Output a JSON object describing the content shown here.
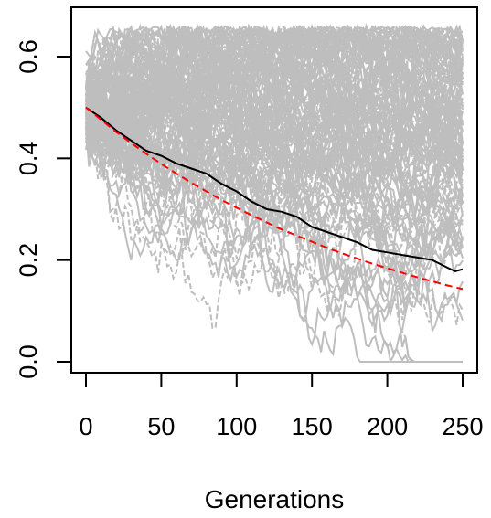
{
  "chart_data": {
    "type": "line",
    "xlabel": "Generations",
    "ylabel": "",
    "xlim": [
      0,
      250
    ],
    "ylim": [
      0,
      0.6
    ],
    "x_ticks": [
      0,
      50,
      100,
      150,
      200,
      250
    ],
    "x_tick_labels": [
      "0",
      "50",
      "100",
      "150",
      "200",
      "250"
    ],
    "y_ticks": [
      0.0,
      0.2,
      0.4,
      0.6
    ],
    "y_tick_labels": [
      "0.0",
      "0.2",
      "0.4",
      "0.6"
    ],
    "grid": false,
    "colors": {
      "simulations": "#bebebe",
      "mean": "#000000",
      "expected": "#ff0000"
    },
    "series": [
      {
        "style": "solid",
        "color": "#000000",
        "x": [
          0,
          10,
          20,
          30,
          40,
          50,
          60,
          70,
          80,
          90,
          100,
          110,
          120,
          130,
          140,
          150,
          160,
          170,
          180,
          190,
          200,
          210,
          220,
          230,
          240,
          245,
          250
        ],
        "y": [
          0.5,
          0.48,
          0.455,
          0.435,
          0.415,
          0.405,
          0.39,
          0.38,
          0.37,
          0.35,
          0.335,
          0.315,
          0.3,
          0.295,
          0.285,
          0.265,
          0.255,
          0.245,
          0.235,
          0.22,
          0.215,
          0.21,
          0.205,
          0.2,
          0.185,
          0.178,
          0.182
        ]
      },
      {
        "style": "dashed",
        "color": "#ff0000",
        "x": [
          0,
          10,
          20,
          30,
          40,
          50,
          60,
          70,
          80,
          90,
          100,
          110,
          120,
          130,
          140,
          150,
          160,
          170,
          180,
          190,
          200,
          210,
          220,
          230,
          240,
          250
        ],
        "y": [
          0.5,
          0.476,
          0.452,
          0.43,
          0.409,
          0.389,
          0.37,
          0.352,
          0.335,
          0.318,
          0.303,
          0.288,
          0.274,
          0.26,
          0.248,
          0.236,
          0.224,
          0.213,
          0.203,
          0.193,
          0.184,
          0.175,
          0.166,
          0.158,
          0.15,
          0.143
        ]
      }
    ],
    "simulations": {
      "count": 120,
      "x_max": 250,
      "start": 0.5,
      "upper_band": 0.66,
      "lower_band": 0.0
    }
  }
}
